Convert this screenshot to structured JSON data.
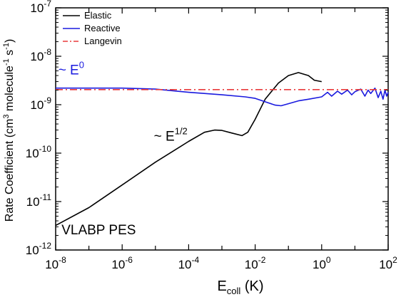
{
  "chart_data": {
    "type": "line",
    "title": "",
    "xlabel": {
      "main": "E",
      "sub": "coll",
      "unit": " (K)"
    },
    "ylabel": {
      "pre": "Rate Coefficient (cm",
      "sup1": "3",
      "mid": " molecule",
      "sup2": "-1",
      "mid2": " s",
      "sup3": "-1",
      "post": ")"
    },
    "x_scale": "log",
    "y_scale": "log",
    "xlim": [
      1e-08,
      100
    ],
    "ylim": [
      1e-12,
      1e-07
    ],
    "x_ticks": [
      {
        "base": "10",
        "exp": "-8",
        "value": 1e-08
      },
      {
        "base": "10",
        "exp": "-6",
        "value": 1e-06
      },
      {
        "base": "10",
        "exp": "-4",
        "value": 0.0001
      },
      {
        "base": "10",
        "exp": "-2",
        "value": 0.01
      },
      {
        "base": "10",
        "exp": "0",
        "value": 1
      },
      {
        "base": "10",
        "exp": "2",
        "value": 100
      }
    ],
    "y_ticks": [
      {
        "base": "10",
        "exp": "-12",
        "value": 1e-12
      },
      {
        "base": "10",
        "exp": "-11",
        "value": 1e-11
      },
      {
        "base": "10",
        "exp": "-10",
        "value": 1e-10
      },
      {
        "base": "10",
        "exp": "-9",
        "value": 1e-09
      },
      {
        "base": "10",
        "exp": "-8",
        "value": 1e-08
      },
      {
        "base": "10",
        "exp": "-7",
        "value": 1e-07
      }
    ],
    "grid": false,
    "legend_position": "top-left",
    "series": [
      {
        "name": "Elastic",
        "color": "#000000",
        "style": "solid",
        "points": [
          [
            1e-08,
            3.2e-12
          ],
          [
            1e-07,
            7.5e-12
          ],
          [
            1e-06,
            2.2e-11
          ],
          [
            1e-05,
            6.5e-11
          ],
          [
            0.0001,
            1.75e-10
          ],
          [
            0.0003,
            2.7e-10
          ],
          [
            0.0006,
            3e-10
          ],
          [
            0.001,
            2.95e-10
          ],
          [
            0.002,
            2.6e-10
          ],
          [
            0.004,
            2.3e-10
          ],
          [
            0.006,
            2.7e-10
          ],
          [
            0.01,
            5e-10
          ],
          [
            0.02,
            1.3e-09
          ],
          [
            0.05,
            2.8e-09
          ],
          [
            0.1,
            4e-09
          ],
          [
            0.2,
            4.6e-09
          ],
          [
            0.4,
            4e-09
          ],
          [
            0.6,
            3.2e-09
          ],
          [
            1.0,
            3e-09
          ]
        ]
      },
      {
        "name": "Reactive",
        "color": "#1a1adf",
        "style": "solid",
        "points": [
          [
            1e-08,
            2.2e-09
          ],
          [
            1e-06,
            2.2e-09
          ],
          [
            1e-05,
            2.1e-09
          ],
          [
            0.0001,
            1.8e-09
          ],
          [
            0.001,
            1.6e-09
          ],
          [
            0.005,
            1.45e-09
          ],
          [
            0.01,
            1.35e-09
          ],
          [
            0.02,
            1.15e-09
          ],
          [
            0.04,
            9.8e-10
          ],
          [
            0.06,
            9.5e-10
          ],
          [
            0.1,
            1.05e-09
          ],
          [
            0.2,
            1.2e-09
          ],
          [
            0.4,
            1.3e-09
          ],
          [
            1.0,
            1.45e-09
          ],
          [
            1.5,
            1.8e-09
          ],
          [
            2.0,
            1.5e-09
          ],
          [
            3.0,
            1.9e-09
          ],
          [
            4.0,
            1.65e-09
          ],
          [
            6.0,
            2e-09
          ],
          [
            8.0,
            1.6e-09
          ],
          [
            10,
            1.85e-09
          ],
          [
            15,
            2.1e-09
          ],
          [
            20,
            1.5e-09
          ],
          [
            25,
            2e-09
          ],
          [
            30,
            1.7e-09
          ],
          [
            40,
            2.2e-09
          ],
          [
            50,
            1.4e-09
          ],
          [
            60,
            1.9e-09
          ],
          [
            70,
            1.3e-09
          ],
          [
            80,
            2e-09
          ],
          [
            90,
            1.5e-09
          ],
          [
            100,
            1.8e-09
          ]
        ]
      },
      {
        "name": "Langevin",
        "color": "#e8393a",
        "style": "dashdot",
        "points": [
          [
            1e-08,
            2.05e-09
          ],
          [
            100,
            2.05e-09
          ]
        ]
      }
    ],
    "annotations": [
      {
        "id": "e0",
        "main": "~ E",
        "sup": "0",
        "color": "#1a1adf",
        "x": 1.2e-08,
        "y": 4.2e-09
      },
      {
        "id": "ehalf",
        "main": "~ E",
        "sup": "1/2",
        "color": "#000000",
        "x": 9e-06,
        "y": 1.8e-10
      },
      {
        "id": "pes",
        "main": "VLABP PES",
        "sup": "",
        "color": "#000000",
        "x": 1.5e-08,
        "y": 2.1e-12
      }
    ]
  }
}
